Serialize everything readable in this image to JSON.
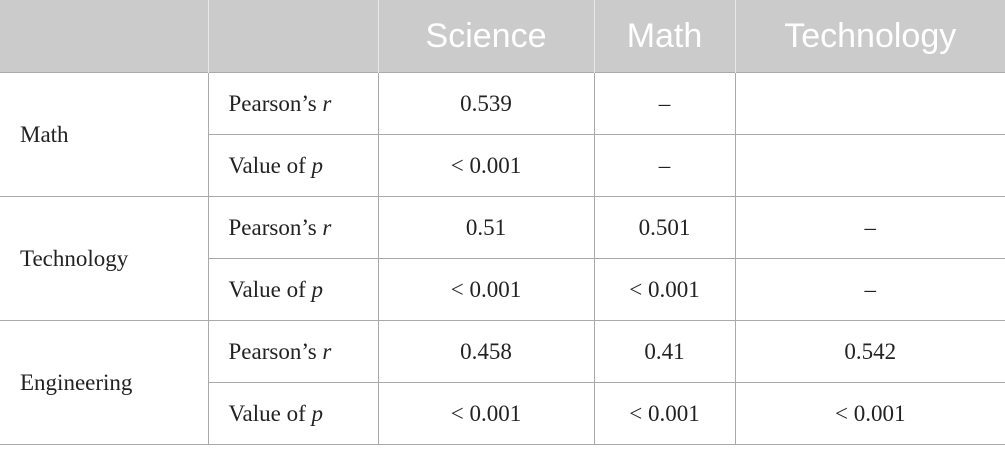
{
  "table": {
    "header": [
      "Science",
      "Math",
      "Technology"
    ],
    "groups": [
      {
        "label": "Math",
        "rows": [
          {
            "stat": [
              "Pearson’s",
              "r"
            ],
            "values": [
              "0.539",
              "–",
              null
            ]
          },
          {
            "stat": [
              "Value of",
              "p"
            ],
            "values": [
              "< 0.001",
              "–",
              null
            ]
          }
        ]
      },
      {
        "label": "Technology",
        "rows": [
          {
            "stat": [
              "Pearson’s",
              "r"
            ],
            "values": [
              "0.51",
              "0.501",
              "–"
            ]
          },
          {
            "stat": [
              "Value of",
              "p"
            ],
            "values": [
              "< 0.001",
              "< 0.001",
              "–"
            ]
          }
        ]
      },
      {
        "label": "Engineering",
        "rows": [
          {
            "stat": [
              "Pearson’s",
              "r"
            ],
            "values": [
              "0.458",
              "0.41",
              "0.542"
            ]
          },
          {
            "stat": [
              "Value of",
              "p"
            ],
            "values": [
              "< 0.001",
              "< 0.001",
              "< 0.001"
            ]
          }
        ]
      }
    ]
  }
}
